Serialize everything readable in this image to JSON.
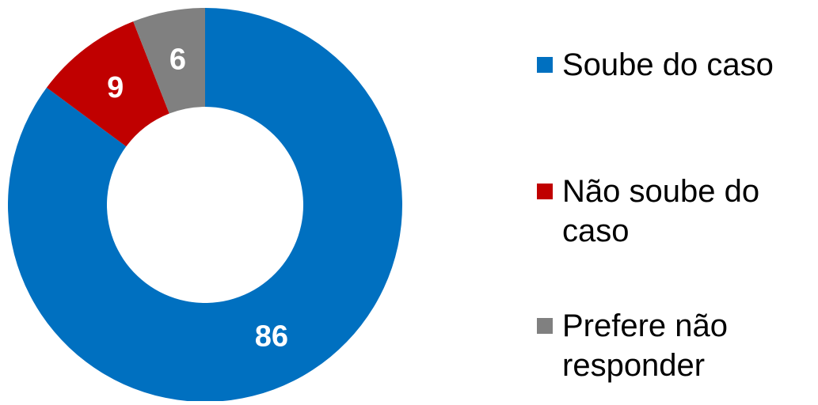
{
  "chart_data": {
    "type": "pie",
    "variant": "donut",
    "categories": [
      "Soube do caso",
      "Não soube do caso",
      "Prefere não responder"
    ],
    "values": [
      86,
      9,
      6
    ],
    "data_labels": [
      "86",
      "9",
      "6"
    ],
    "colors": [
      "#0070C0",
      "#C00000",
      "#808080"
    ],
    "legend_position": "right",
    "legend": [
      {
        "lines": [
          "Soube do caso"
        ]
      },
      {
        "lines": [
          "Não soube do",
          "caso"
        ]
      },
      {
        "lines": [
          "Prefere não",
          "responder"
        ]
      }
    ]
  }
}
